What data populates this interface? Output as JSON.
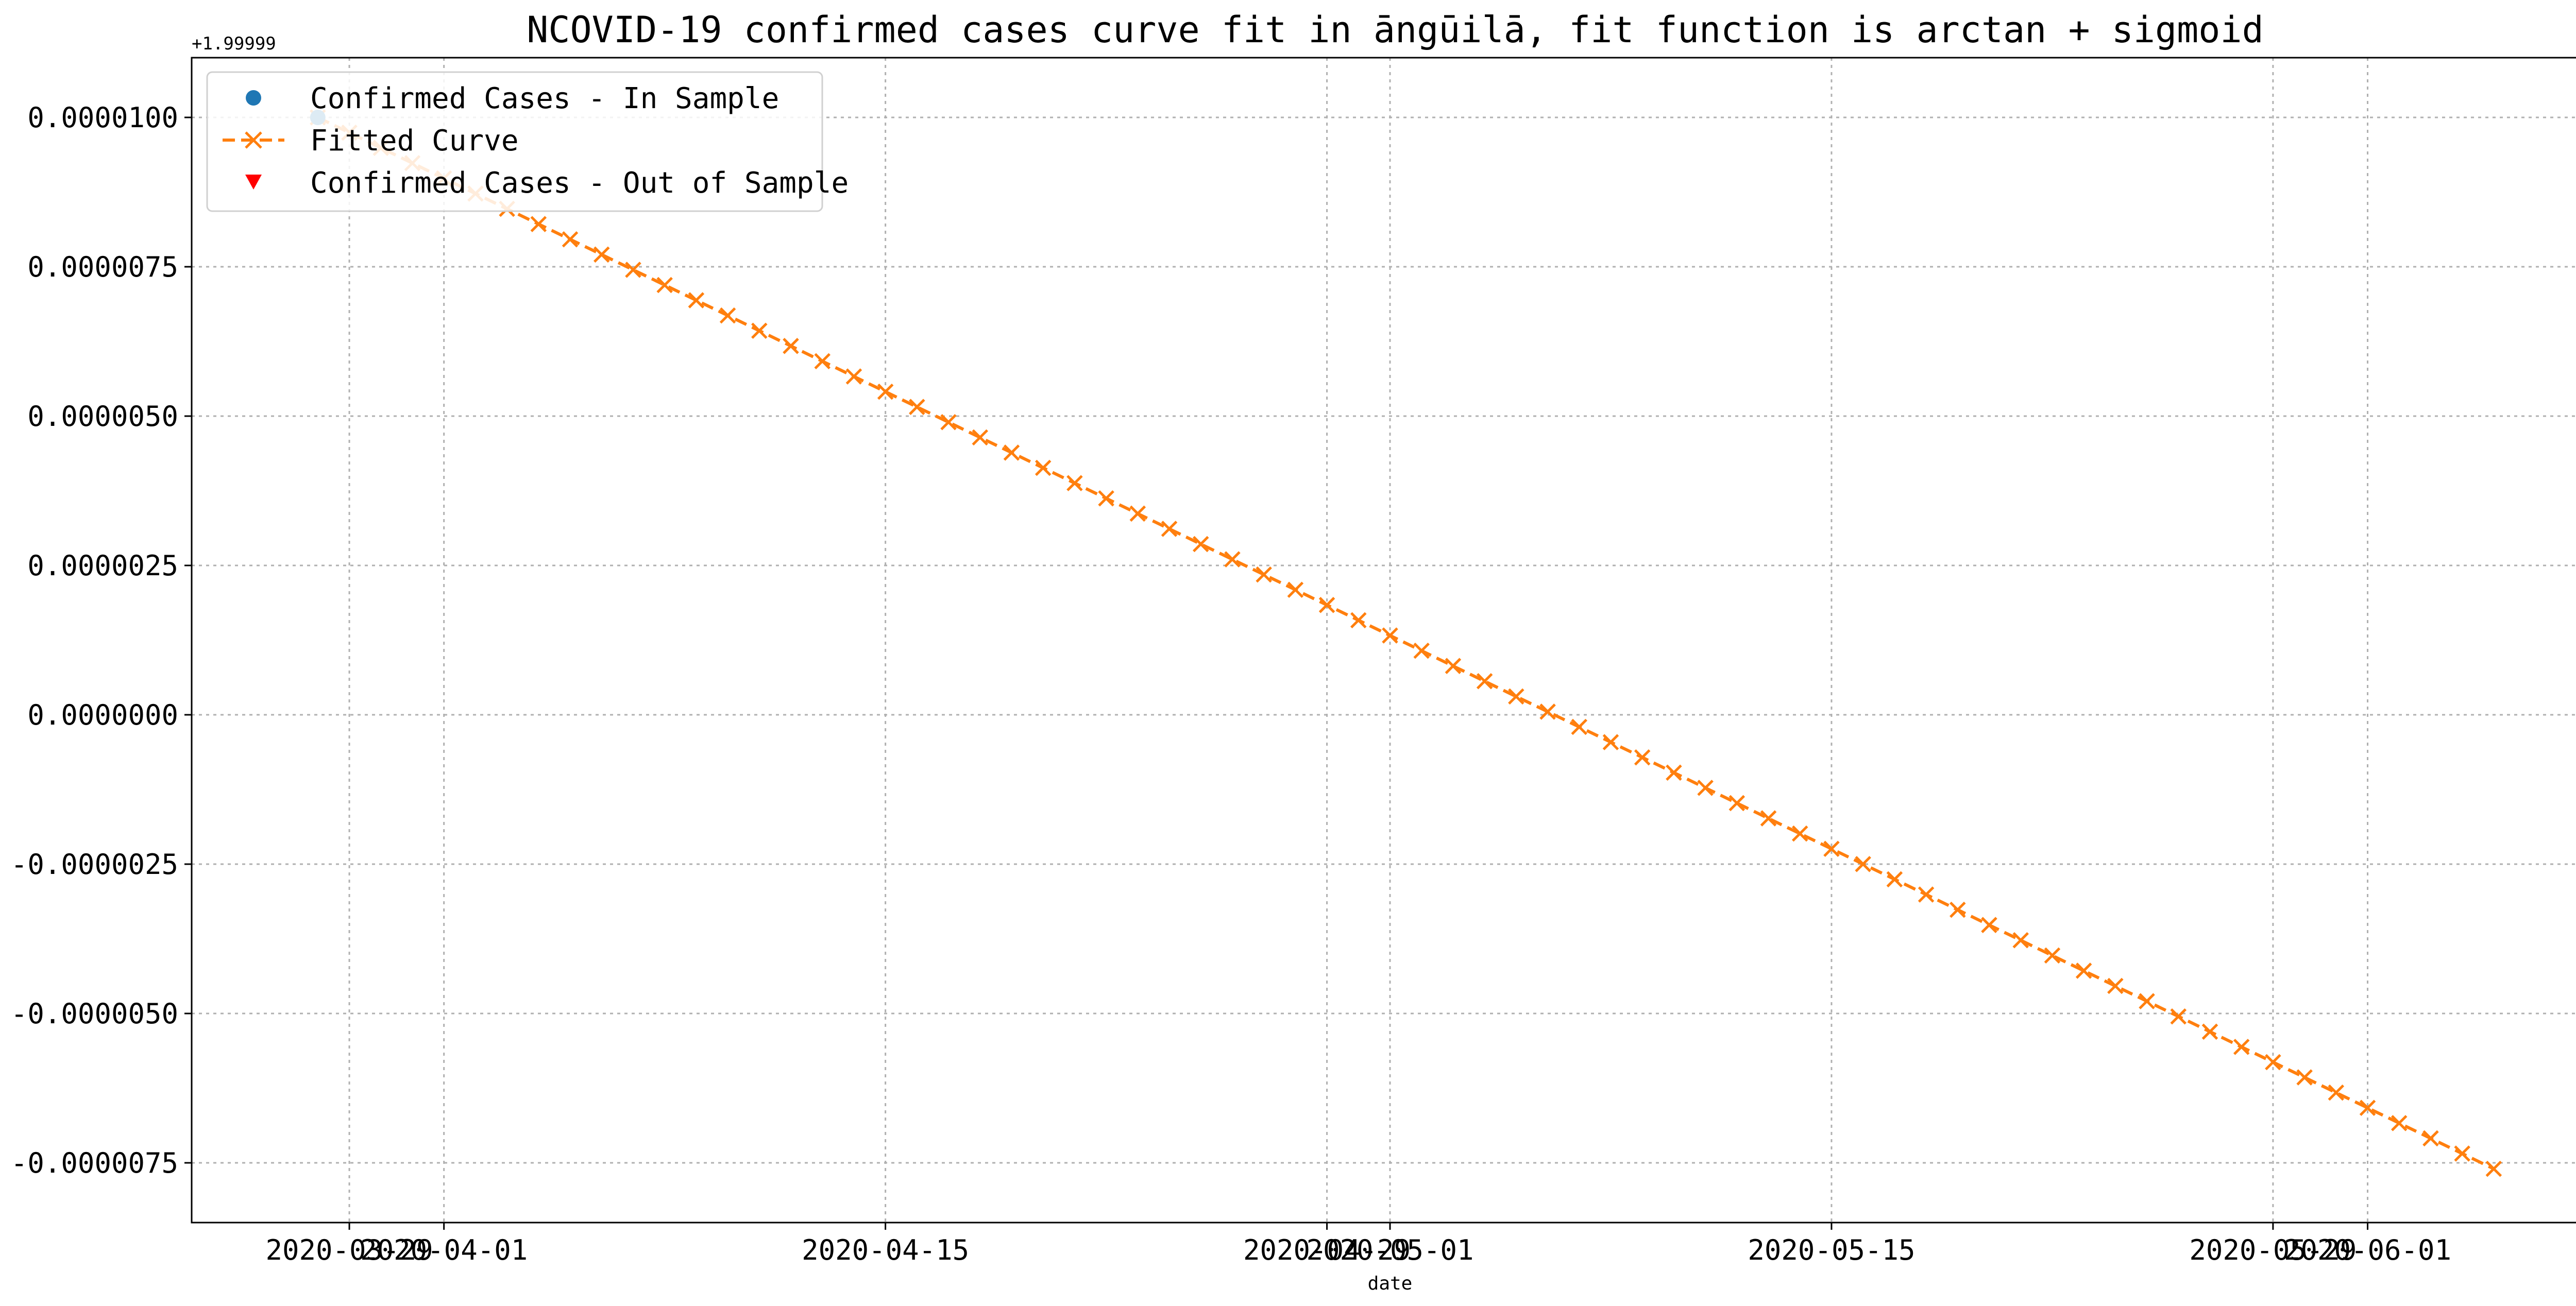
{
  "chart_data": {
    "type": "line",
    "title": "NCOVID-19 confirmed cases curve fit in āngūilā, fit function is arctan + sigmoid",
    "xlabel": "date",
    "ylabel": "",
    "y_offset_label": "+1.99999",
    "xlim": [
      "2020-03-24",
      "2020-06-08"
    ],
    "ylim": [
      -8.5e-06,
      1.1e-05
    ],
    "x_ticks": [
      "2020-03-29",
      "2020-04-01",
      "2020-04-15",
      "2020-04-29",
      "2020-05-01",
      "2020-05-15",
      "2020-05-29",
      "2020-06-01"
    ],
    "y_ticks": [
      "-0.0000075",
      "-0.0000050",
      "-0.0000025",
      "0.0000000",
      "0.0000025",
      "0.0000050",
      "0.0000075",
      "0.0000100"
    ],
    "y_tick_values": [
      -7.5e-06,
      -5e-06,
      -2.5e-06,
      0,
      2.5e-06,
      5e-06,
      7.5e-06,
      1e-05
    ],
    "grid": true,
    "legend_position": "top-left",
    "series": [
      {
        "name": "Confirmed Cases - In Sample",
        "marker": "circle",
        "color": "#1f77b4",
        "x": [
          "2020-03-28"
        ],
        "y": [
          1e-05
        ]
      },
      {
        "name": "Fitted Curve",
        "marker": "x",
        "line_style": "dashed",
        "color": "#ff7f0e",
        "x_start": "2020-03-28",
        "x_end": "2020-06-05",
        "step_days": 1,
        "y_start": 1e-05,
        "y_end": -7.6e-06
      },
      {
        "name": "Confirmed Cases - Out of Sample",
        "marker": "triangle-down",
        "color": "#ff0000",
        "x": [],
        "y": []
      }
    ]
  }
}
